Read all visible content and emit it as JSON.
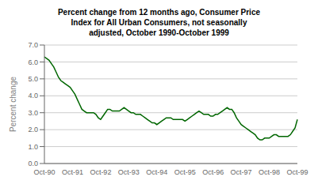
{
  "chart_data": {
    "type": "line",
    "title": "Percent change from 12 months ago, Consumer Price\nIndex for All Urban Consumers, not seasonally\nadjusted, October 1990-October 1999",
    "y_label": "Percent change",
    "categories": [
      "Oct-90",
      null,
      null,
      null,
      null,
      null,
      null,
      null,
      null,
      null,
      null,
      null,
      "Oct-91",
      null,
      null,
      null,
      null,
      null,
      null,
      null,
      null,
      null,
      null,
      null,
      "Oct-92",
      null,
      null,
      null,
      null,
      null,
      null,
      null,
      null,
      null,
      null,
      null,
      "Oct-93",
      null,
      null,
      null,
      null,
      null,
      null,
      null,
      null,
      null,
      null,
      null,
      "Oct-94",
      null,
      null,
      null,
      null,
      null,
      null,
      null,
      null,
      null,
      null,
      null,
      "Oct-95",
      null,
      null,
      null,
      null,
      null,
      null,
      null,
      null,
      null,
      null,
      null,
      "Oct-96",
      null,
      null,
      null,
      null,
      null,
      null,
      null,
      null,
      null,
      null,
      null,
      "Oct-97",
      null,
      null,
      null,
      null,
      null,
      null,
      null,
      null,
      null,
      null,
      null,
      "Oct-98",
      null,
      null,
      null,
      null,
      null,
      null,
      null,
      null,
      null,
      null,
      null,
      "Oct-99"
    ],
    "values": [
      6.3,
      6.2,
      6.1,
      5.9,
      5.7,
      5.4,
      5.1,
      4.9,
      4.8,
      4.7,
      4.6,
      4.5,
      4.3,
      4.1,
      3.8,
      3.5,
      3.2,
      3.1,
      3.0,
      3.0,
      3.0,
      3.0,
      2.9,
      2.7,
      2.6,
      2.8,
      3.0,
      3.2,
      3.2,
      3.1,
      3.1,
      3.1,
      3.1,
      3.2,
      3.3,
      3.2,
      3.1,
      3.0,
      3.0,
      2.9,
      2.9,
      2.9,
      2.8,
      2.7,
      2.6,
      2.5,
      2.4,
      2.4,
      2.3,
      2.4,
      2.5,
      2.6,
      2.7,
      2.7,
      2.7,
      2.6,
      2.6,
      2.6,
      2.6,
      2.6,
      2.5,
      2.6,
      2.7,
      2.8,
      2.9,
      3.0,
      3.1,
      3.0,
      2.9,
      2.9,
      2.9,
      2.8,
      2.8,
      2.9,
      2.9,
      3.0,
      3.1,
      3.2,
      3.3,
      3.2,
      3.2,
      3.0,
      2.7,
      2.5,
      2.3,
      2.2,
      2.1,
      2.0,
      1.9,
      1.8,
      1.7,
      1.5,
      1.4,
      1.4,
      1.5,
      1.5,
      1.5,
      1.6,
      1.7,
      1.7,
      1.6,
      1.6,
      1.6,
      1.6,
      1.6,
      1.7,
      1.9,
      2.1,
      2.6
    ],
    "color": "#006600",
    "ylim": [
      0.0,
      7.0
    ],
    "yticks": [
      {
        "value": 0.0,
        "label": "0.0"
      },
      {
        "value": 1.0,
        "label": "1.0"
      },
      {
        "value": 2.0,
        "label": "2.0"
      },
      {
        "value": 3.0,
        "label": "3.0"
      },
      {
        "value": 4.0,
        "label": "4.0"
      },
      {
        "value": 5.0,
        "label": "5.0"
      },
      {
        "value": 6.0,
        "label": "6.0"
      },
      {
        "value": 7.0,
        "label": "7.0"
      }
    ],
    "grid": true
  }
}
